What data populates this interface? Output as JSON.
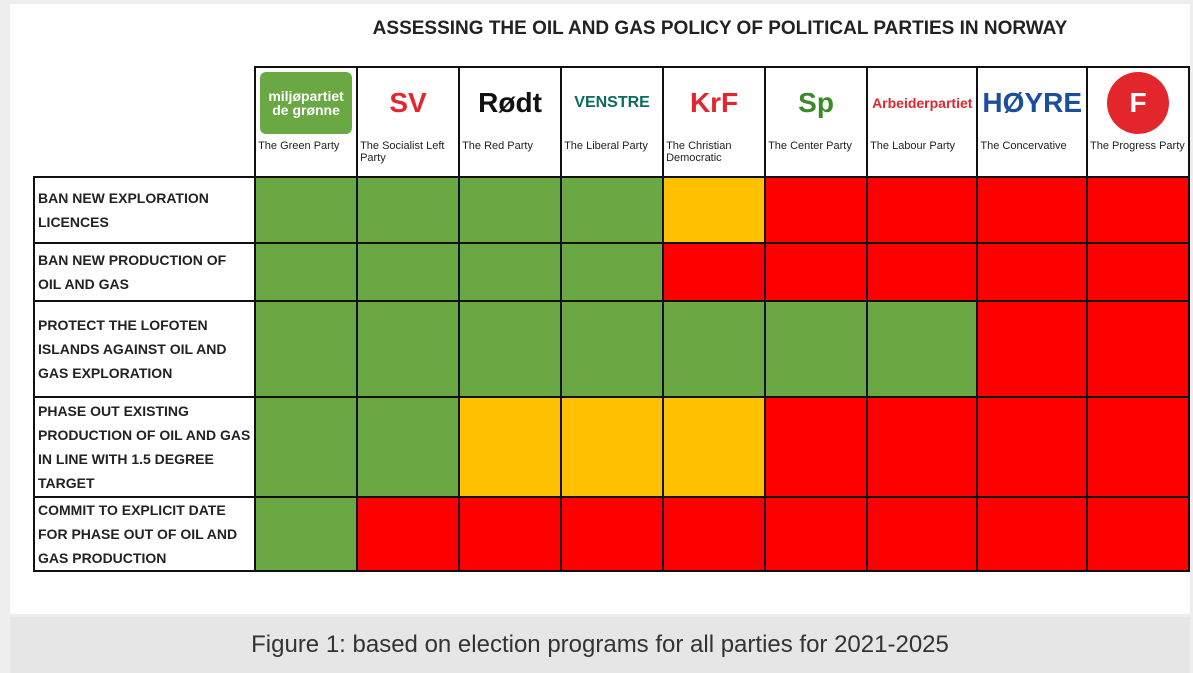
{
  "title": "ASSESSING THE OIL AND GAS POLICY OF POLITICAL PARTIES IN NORWAY",
  "parties": [
    {
      "logo": "miljøpartiet de grønne",
      "logo_color": "#ffffff",
      "logo_bg": "#6aa843",
      "name": "The Green Party"
    },
    {
      "logo": "SV",
      "logo_color": "#e3262f",
      "logo_bg": "#ffffff",
      "name": "The Socialist Left Party"
    },
    {
      "logo": "Rødt",
      "logo_color": "#111111",
      "logo_bg": "#ffffff",
      "name": "The Red Party"
    },
    {
      "logo": "VENSTRE",
      "logo_color": "#0b6b5c",
      "logo_bg": "#ffffff",
      "name": "The Liberal Party"
    },
    {
      "logo": "KrF",
      "logo_color": "#e2262b",
      "logo_bg": "#ffffff",
      "name": "The Christian Democratic"
    },
    {
      "logo": "Sp",
      "logo_color": "#3a8a2a",
      "logo_bg": "#ffffff",
      "name": "The Center Party"
    },
    {
      "logo": "Arbeiderpartiet",
      "logo_color": "#e2262b",
      "logo_bg": "#ffffff",
      "name": "The Labour Party"
    },
    {
      "logo": "HØYRE",
      "logo_color": "#1b4f9c",
      "logo_bg": "#ffffff",
      "name": "The Concervative"
    },
    {
      "logo": "F",
      "logo_color": "#ffffff",
      "logo_bg": "#e2262b",
      "name": "The Progress Party"
    }
  ],
  "rows": [
    {
      "label": "BAN NEW EXPLORATION LICENCES",
      "colors": [
        "#6aa843",
        "#6aa843",
        "#6aa843",
        "#6aa843",
        "#ffc000",
        "#ff0000",
        "#ff0000",
        "#ff0000",
        "#ff0000"
      ]
    },
    {
      "label": "BAN NEW PRODUCTION OF OIL AND GAS",
      "colors": [
        "#6aa843",
        "#6aa843",
        "#6aa843",
        "#6aa843",
        "#ff0000",
        "#ff0000",
        "#ff0000",
        "#ff0000",
        "#ff0000"
      ]
    },
    {
      "label": "PROTECT THE LOFOTEN ISLANDS AGAINST OIL AND GAS EXPLORATION",
      "colors": [
        "#6aa843",
        "#6aa843",
        "#6aa843",
        "#6aa843",
        "#6aa843",
        "#6aa843",
        "#6aa843",
        "#ff0000",
        "#ff0000"
      ]
    },
    {
      "label": "PHASE OUT EXISTING PRODUCTION OF OIL AND GAS IN LINE WITH 1.5 DEGREE TARGET",
      "colors": [
        "#6aa843",
        "#6aa843",
        "#ffc000",
        "#ffc000",
        "#ffc000",
        "#ff0000",
        "#ff0000",
        "#ff0000",
        "#ff0000"
      ]
    },
    {
      "label": "COMMIT TO EXPLICIT DATE FOR PHASE OUT OF OIL AND GAS PRODUCTION",
      "colors": [
        "#6aa843",
        "#ff0000",
        "#ff0000",
        "#ff0000",
        "#ff0000",
        "#ff0000",
        "#ff0000",
        "#ff0000",
        "#ff0000"
      ]
    }
  ],
  "caption": "Figure 1: based on election programs for all parties for 2021-2025"
}
